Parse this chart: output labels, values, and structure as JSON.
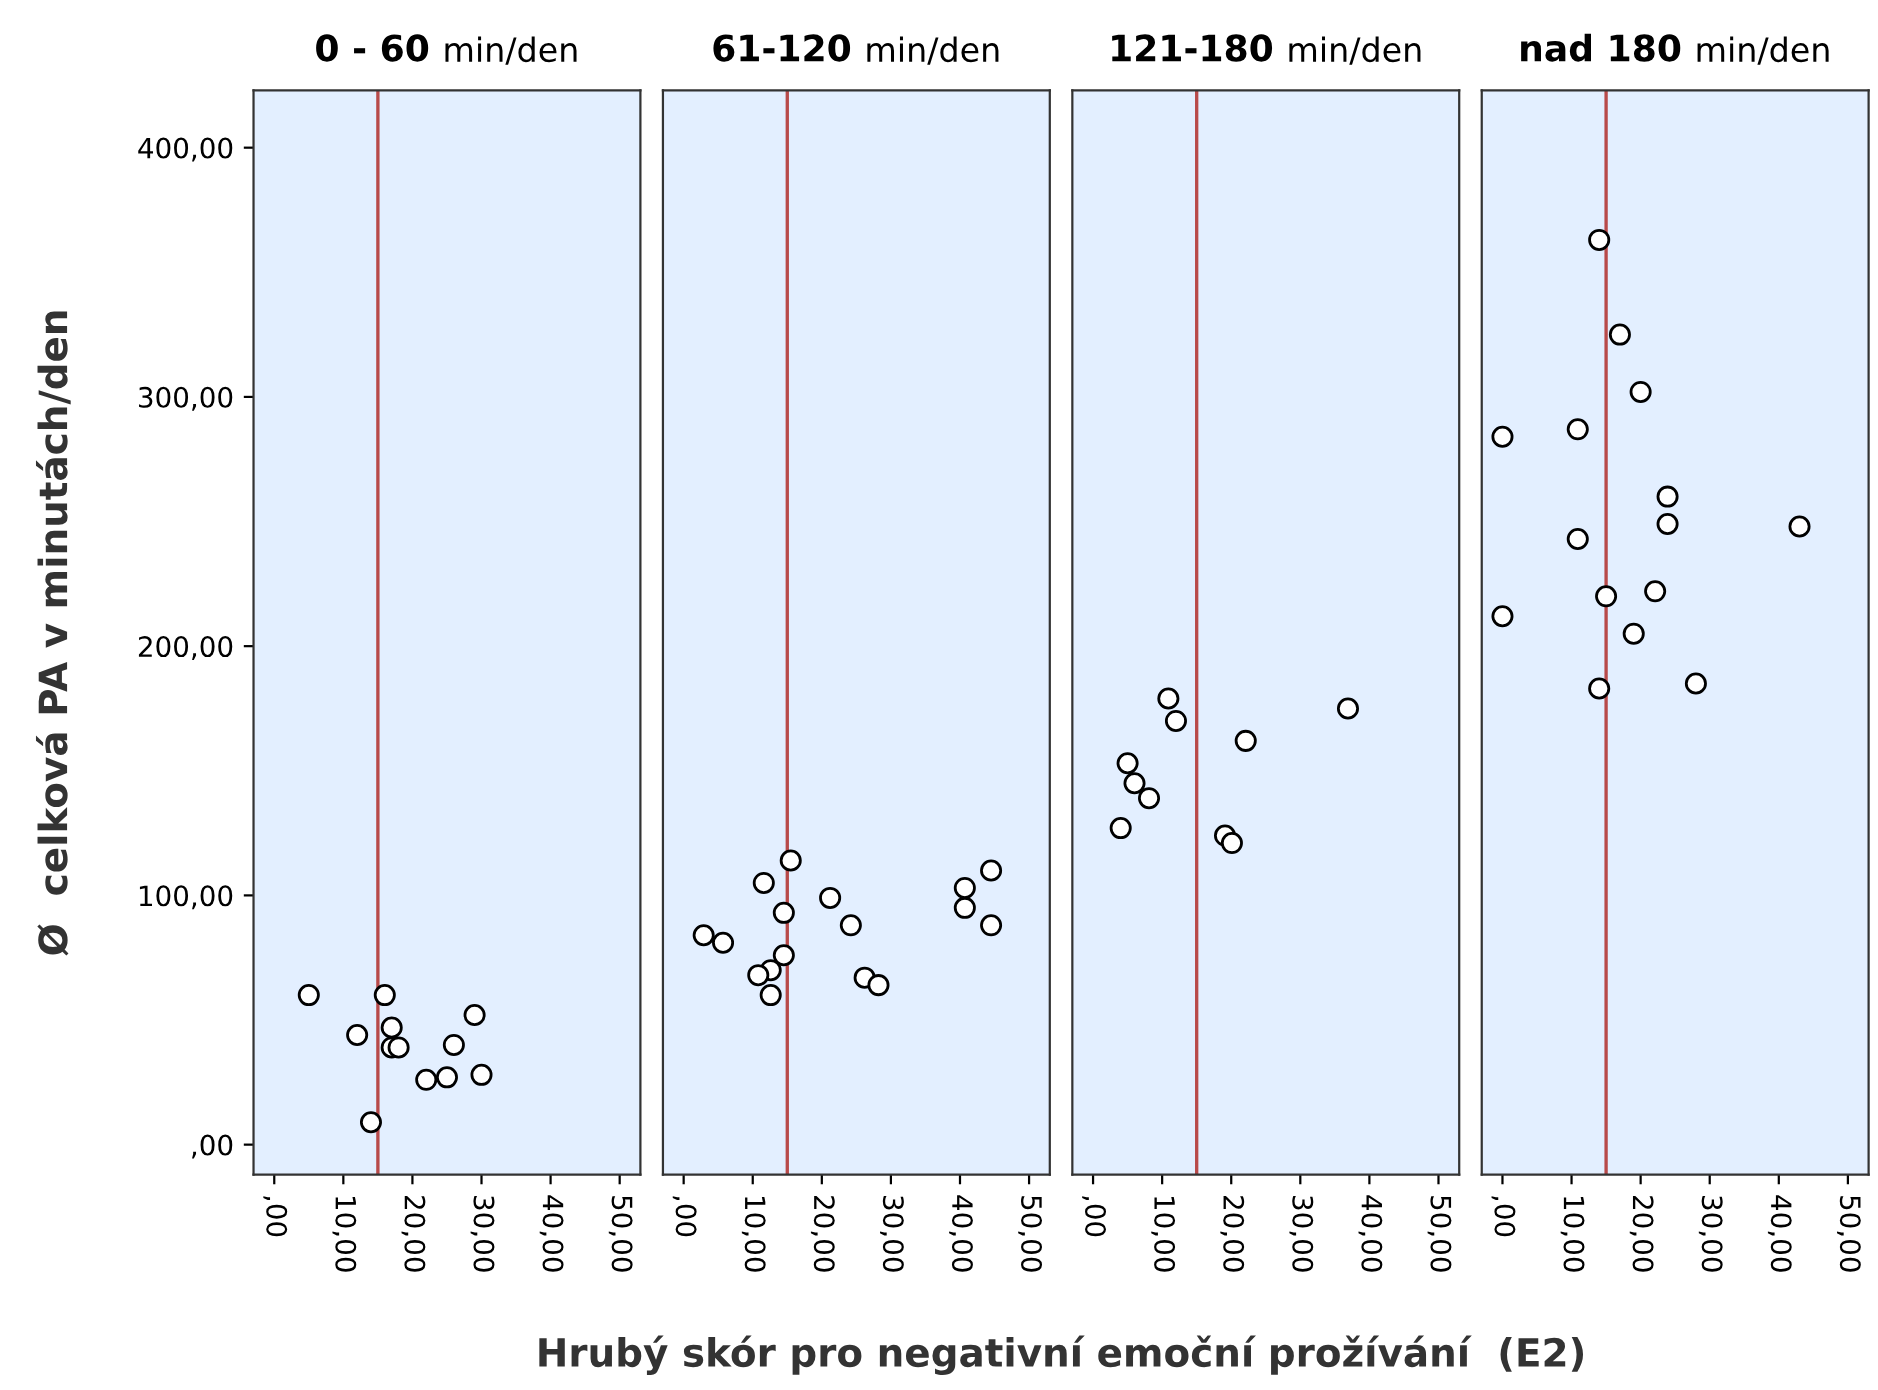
{
  "chart_data": [
    {
      "type": "scatter",
      "title": "0 - 60 min/den",
      "ylabel": "Ø  celková PA v minutách/den",
      "xlabel": "Hrubý skór pro negativní emoční prožívání  (E2)",
      "marker": "circle",
      "grid": false,
      "xlim": [
        -3,
        53
      ],
      "ylim": [
        -12,
        423
      ],
      "xticks": [
        {
          "value": 0,
          "label": ",00"
        },
        {
          "value": 10,
          "label": "10,00"
        },
        {
          "value": 20,
          "label": "20,00"
        },
        {
          "value": 30,
          "label": "30,00"
        },
        {
          "value": 40,
          "label": "40,00"
        },
        {
          "value": 50,
          "label": "50,00"
        }
      ],
      "yticks": [
        {
          "value": 0,
          "label": ",00"
        },
        {
          "value": 100,
          "label": "100,00"
        },
        {
          "value": 200,
          "label": "200,00"
        },
        {
          "value": 300,
          "label": "300,00"
        },
        {
          "value": 400,
          "label": "400,00"
        }
      ],
      "ref_lines": [
        {
          "axis": "x",
          "value": 15,
          "color": "#b84a4a"
        }
      ],
      "series": [
        {
          "color": "#ffffff",
          "x": [
            5,
            16,
            12,
            17,
            17,
            18,
            22,
            25,
            26,
            29,
            30,
            14
          ],
          "values": [
            60,
            60,
            44,
            47,
            39,
            39,
            26,
            27,
            40,
            52,
            28,
            9
          ]
        }
      ]
    },
    {
      "type": "scatter",
      "title": "61-120 min/den",
      "marker": "circle",
      "grid": false,
      "tick_labels": "x",
      "xlim": [
        -3,
        53
      ],
      "ylim": [
        -12,
        423
      ],
      "xticks": [
        {
          "value": 0,
          "label": ",00"
        },
        {
          "value": 10,
          "label": "10,00"
        },
        {
          "value": 20,
          "label": "20,00"
        },
        {
          "value": 30,
          "label": "30,00"
        },
        {
          "value": 40,
          "label": "40,00"
        },
        {
          "value": 50,
          "label": "50,00"
        }
      ],
      "ref_lines": [
        {
          "axis": "x",
          "value": 15,
          "color": "#b84a4a"
        }
      ],
      "series": [
        {
          "color": "#ffffff",
          "x": [
            15.5,
            11.6,
            21.2,
            14.5,
            24.2,
            2.9,
            5.7,
            14.5,
            12.6,
            10.8,
            12.6,
            26.2,
            28.2,
            40.7,
            40.7,
            44.5,
            44.5
          ],
          "values": [
            114,
            105,
            99,
            93,
            88,
            84,
            81,
            76,
            70,
            68,
            60,
            67,
            64,
            103,
            95,
            110,
            88
          ]
        }
      ]
    },
    {
      "type": "scatter",
      "title": "121-180 min/den",
      "marker": "circle",
      "grid": false,
      "tick_labels": "x",
      "xlim": [
        -3,
        53
      ],
      "ylim": [
        -12,
        423
      ],
      "xticks": [
        {
          "value": 0,
          "label": ",00"
        },
        {
          "value": 10,
          "label": "10,00"
        },
        {
          "value": 20,
          "label": "20,00"
        },
        {
          "value": 30,
          "label": "30,00"
        },
        {
          "value": 40,
          "label": "40,00"
        },
        {
          "value": 50,
          "label": "50,00"
        }
      ],
      "ref_lines": [
        {
          "axis": "x",
          "value": 15,
          "color": "#b84a4a"
        }
      ],
      "series": [
        {
          "color": "#ffffff",
          "x": [
            10.9,
            12.0,
            36.9,
            22.1,
            5.0,
            6.0,
            8.1,
            4.0,
            19.1,
            20.1
          ],
          "values": [
            179,
            170,
            175,
            162,
            153,
            145,
            139,
            127,
            124,
            121
          ]
        }
      ]
    },
    {
      "type": "scatter",
      "title": "nad 180 min/den",
      "marker": "circle",
      "grid": false,
      "tick_labels": "x",
      "xlim": [
        -3,
        53
      ],
      "ylim": [
        -12,
        423
      ],
      "xticks": [
        {
          "value": 0,
          "label": ",00"
        },
        {
          "value": 10,
          "label": "10,00"
        },
        {
          "value": 20,
          "label": "20,00"
        },
        {
          "value": 30,
          "label": "30,00"
        },
        {
          "value": 40,
          "label": "40,00"
        },
        {
          "value": 50,
          "label": "50,00"
        }
      ],
      "ref_lines": [
        {
          "axis": "x",
          "value": 15,
          "color": "#b84a4a"
        }
      ],
      "series": [
        {
          "color": "#ffffff",
          "x": [
            14.0,
            17.0,
            20.0,
            0.0,
            10.9,
            23.9,
            23.9,
            43.0,
            10.9,
            15.0,
            22.1,
            0.0,
            19.0,
            14.0,
            28.0
          ],
          "values": [
            363,
            325,
            302,
            284,
            287,
            260,
            249,
            248,
            243,
            220,
            222,
            212,
            205,
            183,
            185
          ]
        }
      ]
    }
  ]
}
